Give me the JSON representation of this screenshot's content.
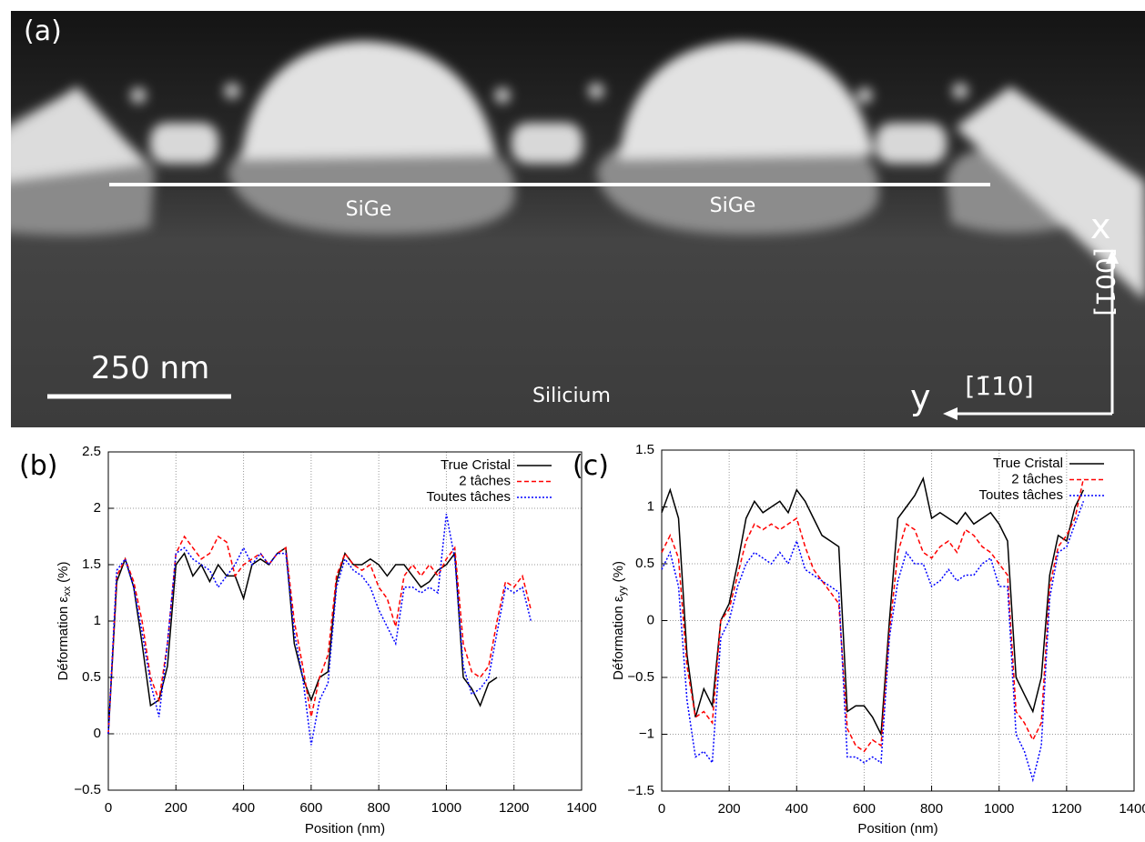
{
  "image_panel": {
    "label": "(a)",
    "texts": [
      "SiGe",
      "SiGe",
      "Silicium"
    ],
    "scale_bar": "250 nm",
    "axis_x": "x",
    "axis_y": "y",
    "dir_x": "[001]",
    "dir_y": "[1̄10]"
  },
  "chart_data": [
    {
      "type": "line",
      "panel": "(b)",
      "xlabel": "Position (nm)",
      "ylabel": {
        "text": "Déformation ε",
        "sub": "xx",
        "unit": "(%)"
      },
      "x": [
        0,
        25,
        50,
        75,
        100,
        125,
        150,
        175,
        200,
        225,
        250,
        275,
        300,
        325,
        350,
        375,
        400,
        425,
        450,
        475,
        500,
        525,
        550,
        575,
        600,
        625,
        650,
        675,
        700,
        725,
        750,
        775,
        800,
        825,
        850,
        875,
        900,
        925,
        950,
        975,
        1000,
        1025,
        1050,
        1075,
        1100,
        1125,
        1150,
        1175,
        1200,
        1225,
        1250
      ],
      "series": [
        {
          "name": "True Cristal",
          "color": "#000000",
          "dash": "solid",
          "values": [
            0,
            1.35,
            1.55,
            1.3,
            0.8,
            0.25,
            0.3,
            0.6,
            1.5,
            1.6,
            1.4,
            1.5,
            1.35,
            1.5,
            1.4,
            1.4,
            1.2,
            1.5,
            1.55,
            1.5,
            1.6,
            1.65,
            0.8,
            0.5,
            0.3,
            0.5,
            0.55,
            1.35,
            1.6,
            1.5,
            1.5,
            1.55,
            1.5,
            1.4,
            1.5,
            1.5,
            1.4,
            1.3,
            1.35,
            1.45,
            1.5,
            1.6,
            0.5,
            0.4,
            0.25,
            0.45,
            0.5,
            null,
            null,
            null,
            null
          ]
        },
        {
          "name": "2 tâches",
          "color": "#ff0000",
          "dash": "dashed",
          "values": [
            0,
            1.4,
            1.55,
            1.35,
            1.0,
            0.5,
            0.3,
            0.8,
            1.6,
            1.75,
            1.65,
            1.55,
            1.6,
            1.75,
            1.7,
            1.4,
            1.5,
            1.55,
            1.6,
            1.5,
            1.6,
            1.65,
            1.0,
            0.6,
            0.15,
            0.5,
            0.7,
            1.4,
            1.6,
            1.5,
            1.45,
            1.5,
            1.3,
            1.2,
            0.95,
            1.4,
            1.5,
            1.4,
            1.5,
            1.4,
            1.55,
            1.65,
            0.8,
            0.55,
            0.5,
            0.6,
            1.0,
            1.35,
            1.3,
            1.4,
            1.1
          ]
        },
        {
          "name": "Toutes tâches",
          "color": "#0000ff",
          "dash": "dotted",
          "values": [
            0,
            1.45,
            1.55,
            1.3,
            0.9,
            0.45,
            0.15,
            0.8,
            1.6,
            1.65,
            1.55,
            1.5,
            1.45,
            1.3,
            1.4,
            1.5,
            1.65,
            1.5,
            1.6,
            1.5,
            1.6,
            1.6,
            0.9,
            0.5,
            -0.1,
            0.3,
            0.45,
            1.3,
            1.55,
            1.45,
            1.4,
            1.3,
            1.1,
            0.95,
            0.8,
            1.3,
            1.3,
            1.25,
            1.3,
            1.25,
            1.95,
            1.55,
            0.6,
            0.35,
            0.4,
            0.5,
            0.9,
            1.3,
            1.25,
            1.3,
            1.0
          ]
        }
      ],
      "xlim": [
        0,
        1400
      ],
      "xticks": [
        0,
        200,
        400,
        600,
        800,
        1000,
        1200,
        1400
      ],
      "ylim": [
        -0.5,
        2.5
      ],
      "yticks": [
        {
          "value": -0.5,
          "label": "−0.5"
        },
        0,
        0.5,
        1,
        1.5,
        2,
        2.5
      ],
      "grid": true,
      "legend": "top-right"
    },
    {
      "type": "line",
      "panel": "(c)",
      "xlabel": "Position (nm)",
      "ylabel": {
        "text": "Déformation ε",
        "sub": "yy",
        "unit": "(%)"
      },
      "x": [
        0,
        25,
        50,
        75,
        100,
        125,
        150,
        175,
        200,
        225,
        250,
        275,
        300,
        325,
        350,
        375,
        400,
        425,
        450,
        475,
        500,
        525,
        550,
        575,
        600,
        625,
        650,
        675,
        700,
        725,
        750,
        775,
        800,
        825,
        850,
        875,
        900,
        925,
        950,
        975,
        1000,
        1025,
        1050,
        1075,
        1100,
        1125,
        1150,
        1175,
        1200,
        1225,
        1250
      ],
      "series": [
        {
          "name": "True Cristal",
          "color": "#000000",
          "dash": "solid",
          "values": [
            0.95,
            1.15,
            0.9,
            -0.3,
            -0.85,
            -0.6,
            -0.75,
            0,
            0.15,
            0.5,
            0.9,
            1.05,
            0.95,
            1.0,
            1.05,
            0.95,
            1.15,
            1.05,
            0.9,
            0.75,
            0.7,
            0.65,
            -0.8,
            -0.75,
            -0.75,
            -0.85,
            -1.0,
            0.0,
            0.9,
            1.0,
            1.1,
            1.25,
            0.9,
            0.95,
            0.9,
            0.85,
            0.95,
            0.85,
            0.9,
            0.95,
            0.85,
            0.7,
            -0.5,
            -0.65,
            -0.8,
            -0.5,
            0.4,
            0.75,
            0.7,
            1.0,
            1.15
          ]
        },
        {
          "name": "2 tâches",
          "color": "#ff0000",
          "dash": "dashed",
          "values": [
            0.6,
            0.75,
            0.55,
            -0.4,
            -0.85,
            -0.8,
            -0.9,
            0,
            0.1,
            0.4,
            0.7,
            0.85,
            0.8,
            0.85,
            0.8,
            0.85,
            0.9,
            0.65,
            0.45,
            0.35,
            0.25,
            0.15,
            -0.95,
            -1.1,
            -1.15,
            -1.05,
            -1.1,
            -0.1,
            0.6,
            0.85,
            0.8,
            0.6,
            0.55,
            0.65,
            0.7,
            0.6,
            0.8,
            0.75,
            0.65,
            0.6,
            0.5,
            0.4,
            -0.8,
            -0.9,
            -1.05,
            -0.9,
            0.3,
            0.65,
            0.75,
            0.9,
            1.25
          ]
        },
        {
          "name": "Toutes tâches",
          "color": "#0000ff",
          "dash": "dotted",
          "values": [
            0.45,
            0.6,
            0.3,
            -0.7,
            -1.2,
            -1.15,
            -1.25,
            -0.15,
            0,
            0.3,
            0.5,
            0.6,
            0.55,
            0.5,
            0.6,
            0.5,
            0.7,
            0.45,
            0.4,
            0.35,
            0.3,
            0.25,
            -1.2,
            -1.2,
            -1.25,
            -1.2,
            -1.25,
            -0.15,
            0.35,
            0.6,
            0.5,
            0.5,
            0.3,
            0.35,
            0.45,
            0.35,
            0.4,
            0.4,
            0.5,
            0.55,
            0.3,
            0.3,
            -1.0,
            -1.15,
            -1.4,
            -1.1,
            0.2,
            0.6,
            0.65,
            0.85,
            1.05
          ]
        }
      ],
      "xlim": [
        0,
        1400
      ],
      "xticks": [
        0,
        200,
        400,
        600,
        800,
        1000,
        1200,
        1400
      ],
      "ylim": [
        -1.5,
        1.5
      ],
      "yticks": [
        {
          "value": -1.5,
          "label": "−1.5"
        },
        {
          "value": -1,
          "label": "−1"
        },
        {
          "value": -0.5,
          "label": "−0.5"
        },
        0,
        0.5,
        1,
        1.5
      ],
      "grid": true,
      "legend": "top-right"
    }
  ]
}
